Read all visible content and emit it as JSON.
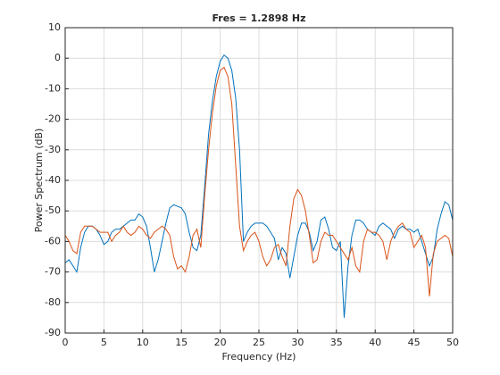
{
  "chart_data": {
    "type": "line",
    "title": "Fres = 1.2898 Hz",
    "xlabel": "Frequency (Hz)",
    "ylabel": "Power Spectrum (dB)",
    "x": [
      0,
      0.5,
      1,
      1.5,
      2,
      2.5,
      3,
      3.5,
      4,
      4.5,
      5,
      5.5,
      6,
      6.5,
      7,
      7.5,
      8,
      8.5,
      9,
      9.5,
      10,
      10.5,
      11,
      11.5,
      12,
      12.5,
      13,
      13.5,
      14,
      14.5,
      15,
      15.5,
      16,
      16.5,
      17,
      17.5,
      18,
      18.5,
      19,
      19.5,
      20,
      20.5,
      21,
      21.5,
      22,
      22.5,
      23,
      23.5,
      24,
      24.5,
      25,
      25.5,
      26,
      26.5,
      27,
      27.5,
      28,
      28.5,
      29,
      29.5,
      30,
      30.5,
      31,
      31.5,
      32,
      32.5,
      33,
      33.5,
      34,
      34.5,
      35,
      35.5,
      36,
      36.5,
      37,
      37.5,
      38,
      38.5,
      39,
      39.5,
      40,
      40.5,
      41,
      41.5,
      42,
      42.5,
      43,
      43.5,
      44,
      44.5,
      45,
      45.5,
      46,
      46.5,
      47,
      47.5,
      48,
      48.5,
      49,
      49.5,
      50
    ],
    "series": [
      {
        "color": "#0072bd",
        "values": [
          -67,
          -66,
          -68,
          -70,
          -62,
          -57,
          -55,
          -55,
          -56,
          -58,
          -61,
          -60,
          -57,
          -56,
          -56,
          -55,
          -54,
          -53,
          -53,
          -51,
          -52,
          -55,
          -62,
          -70,
          -66,
          -60,
          -54,
          -49,
          -48,
          -48.5,
          -49,
          -51,
          -57,
          -62,
          -63,
          -58,
          -42,
          -25,
          -14,
          -6,
          -1,
          1,
          0,
          -4,
          -13,
          -30,
          -60,
          -57,
          -55,
          -54,
          -54,
          -54,
          -55,
          -57,
          -59,
          -66,
          -62,
          -64,
          -72,
          -65,
          -58,
          -54,
          -54,
          -57,
          -63,
          -60,
          -53,
          -52,
          -56,
          -62,
          -63,
          -60,
          -85,
          -68,
          -58,
          -53,
          -53,
          -54,
          -56,
          -57,
          -58,
          -55,
          -54,
          -55,
          -56,
          -59,
          -56,
          -55,
          -56,
          -56,
          -57,
          -56,
          -60,
          -64,
          -68,
          -65,
          -56,
          -51,
          -47,
          -48,
          -53
        ]
      },
      {
        "color": "#d95319",
        "values": [
          -58,
          -60,
          -63,
          -64,
          -57,
          -55,
          -55,
          -55,
          -56,
          -57,
          -57,
          -57,
          -60,
          -58,
          -57,
          -55,
          -57,
          -58,
          -57,
          -55,
          -56,
          -58,
          -59,
          -57,
          -56,
          -55,
          -56,
          -58,
          -65,
          -69,
          -68,
          -70,
          -65,
          -58,
          -56,
          -62,
          -45,
          -30,
          -18,
          -9,
          -4,
          -3,
          -6,
          -15,
          -35,
          -55,
          -63,
          -60,
          -58,
          -57,
          -60,
          -65,
          -68,
          -66,
          -62,
          -61,
          -65,
          -68,
          -55,
          -46,
          -43,
          -45,
          -50,
          -58,
          -67,
          -66,
          -60,
          -57,
          -58,
          -58,
          -60,
          -62,
          -64,
          -66,
          -62,
          -68,
          -70,
          -60,
          -56,
          -57,
          -57,
          -58,
          -60,
          -66,
          -60,
          -57,
          -55,
          -54,
          -56,
          -57,
          -62,
          -60,
          -58,
          -62,
          -78,
          -64,
          -60,
          -59,
          -58,
          -59,
          -65
        ]
      }
    ],
    "xlim": [
      0,
      50
    ],
    "xticks": [
      0,
      5,
      10,
      15,
      20,
      25,
      30,
      35,
      40,
      45,
      50
    ],
    "ylim": [
      -90,
      10
    ],
    "yticks": [
      -90,
      -80,
      -70,
      -60,
      -50,
      -40,
      -30,
      -20,
      -10,
      0,
      10
    ],
    "grid": true
  }
}
